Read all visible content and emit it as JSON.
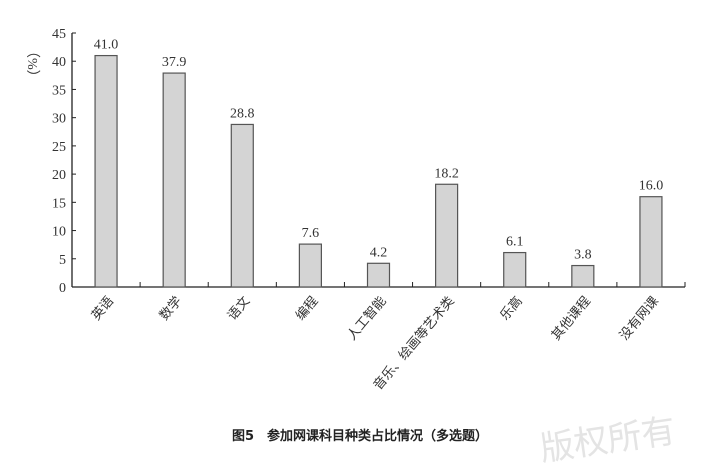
{
  "chart_data": {
    "type": "bar",
    "title": "图5　参加网课科目种类占比情况（多选题）",
    "ylabel": "（%）",
    "xlabel": "",
    "ylim": [
      0,
      45
    ],
    "yticks": [
      0,
      5,
      10,
      15,
      20,
      25,
      30,
      35,
      40,
      45
    ],
    "grid": false,
    "categories": [
      "英语",
      "数学",
      "语文",
      "编程",
      "人工智能",
      "音乐、绘画等艺术类",
      "乐高",
      "其他课程",
      "没有网课"
    ],
    "values": [
      41.0,
      37.9,
      28.8,
      7.6,
      4.2,
      18.2,
      6.1,
      3.8,
      16.0
    ],
    "value_labels": [
      "41.0",
      "37.9",
      "28.8",
      "7.6",
      "4.2",
      "18.2",
      "6.1",
      "3.8",
      "16.0"
    ],
    "bar_color": "#d4d4d4",
    "bar_edge_color": "#555555"
  },
  "watermark": "版权所有"
}
